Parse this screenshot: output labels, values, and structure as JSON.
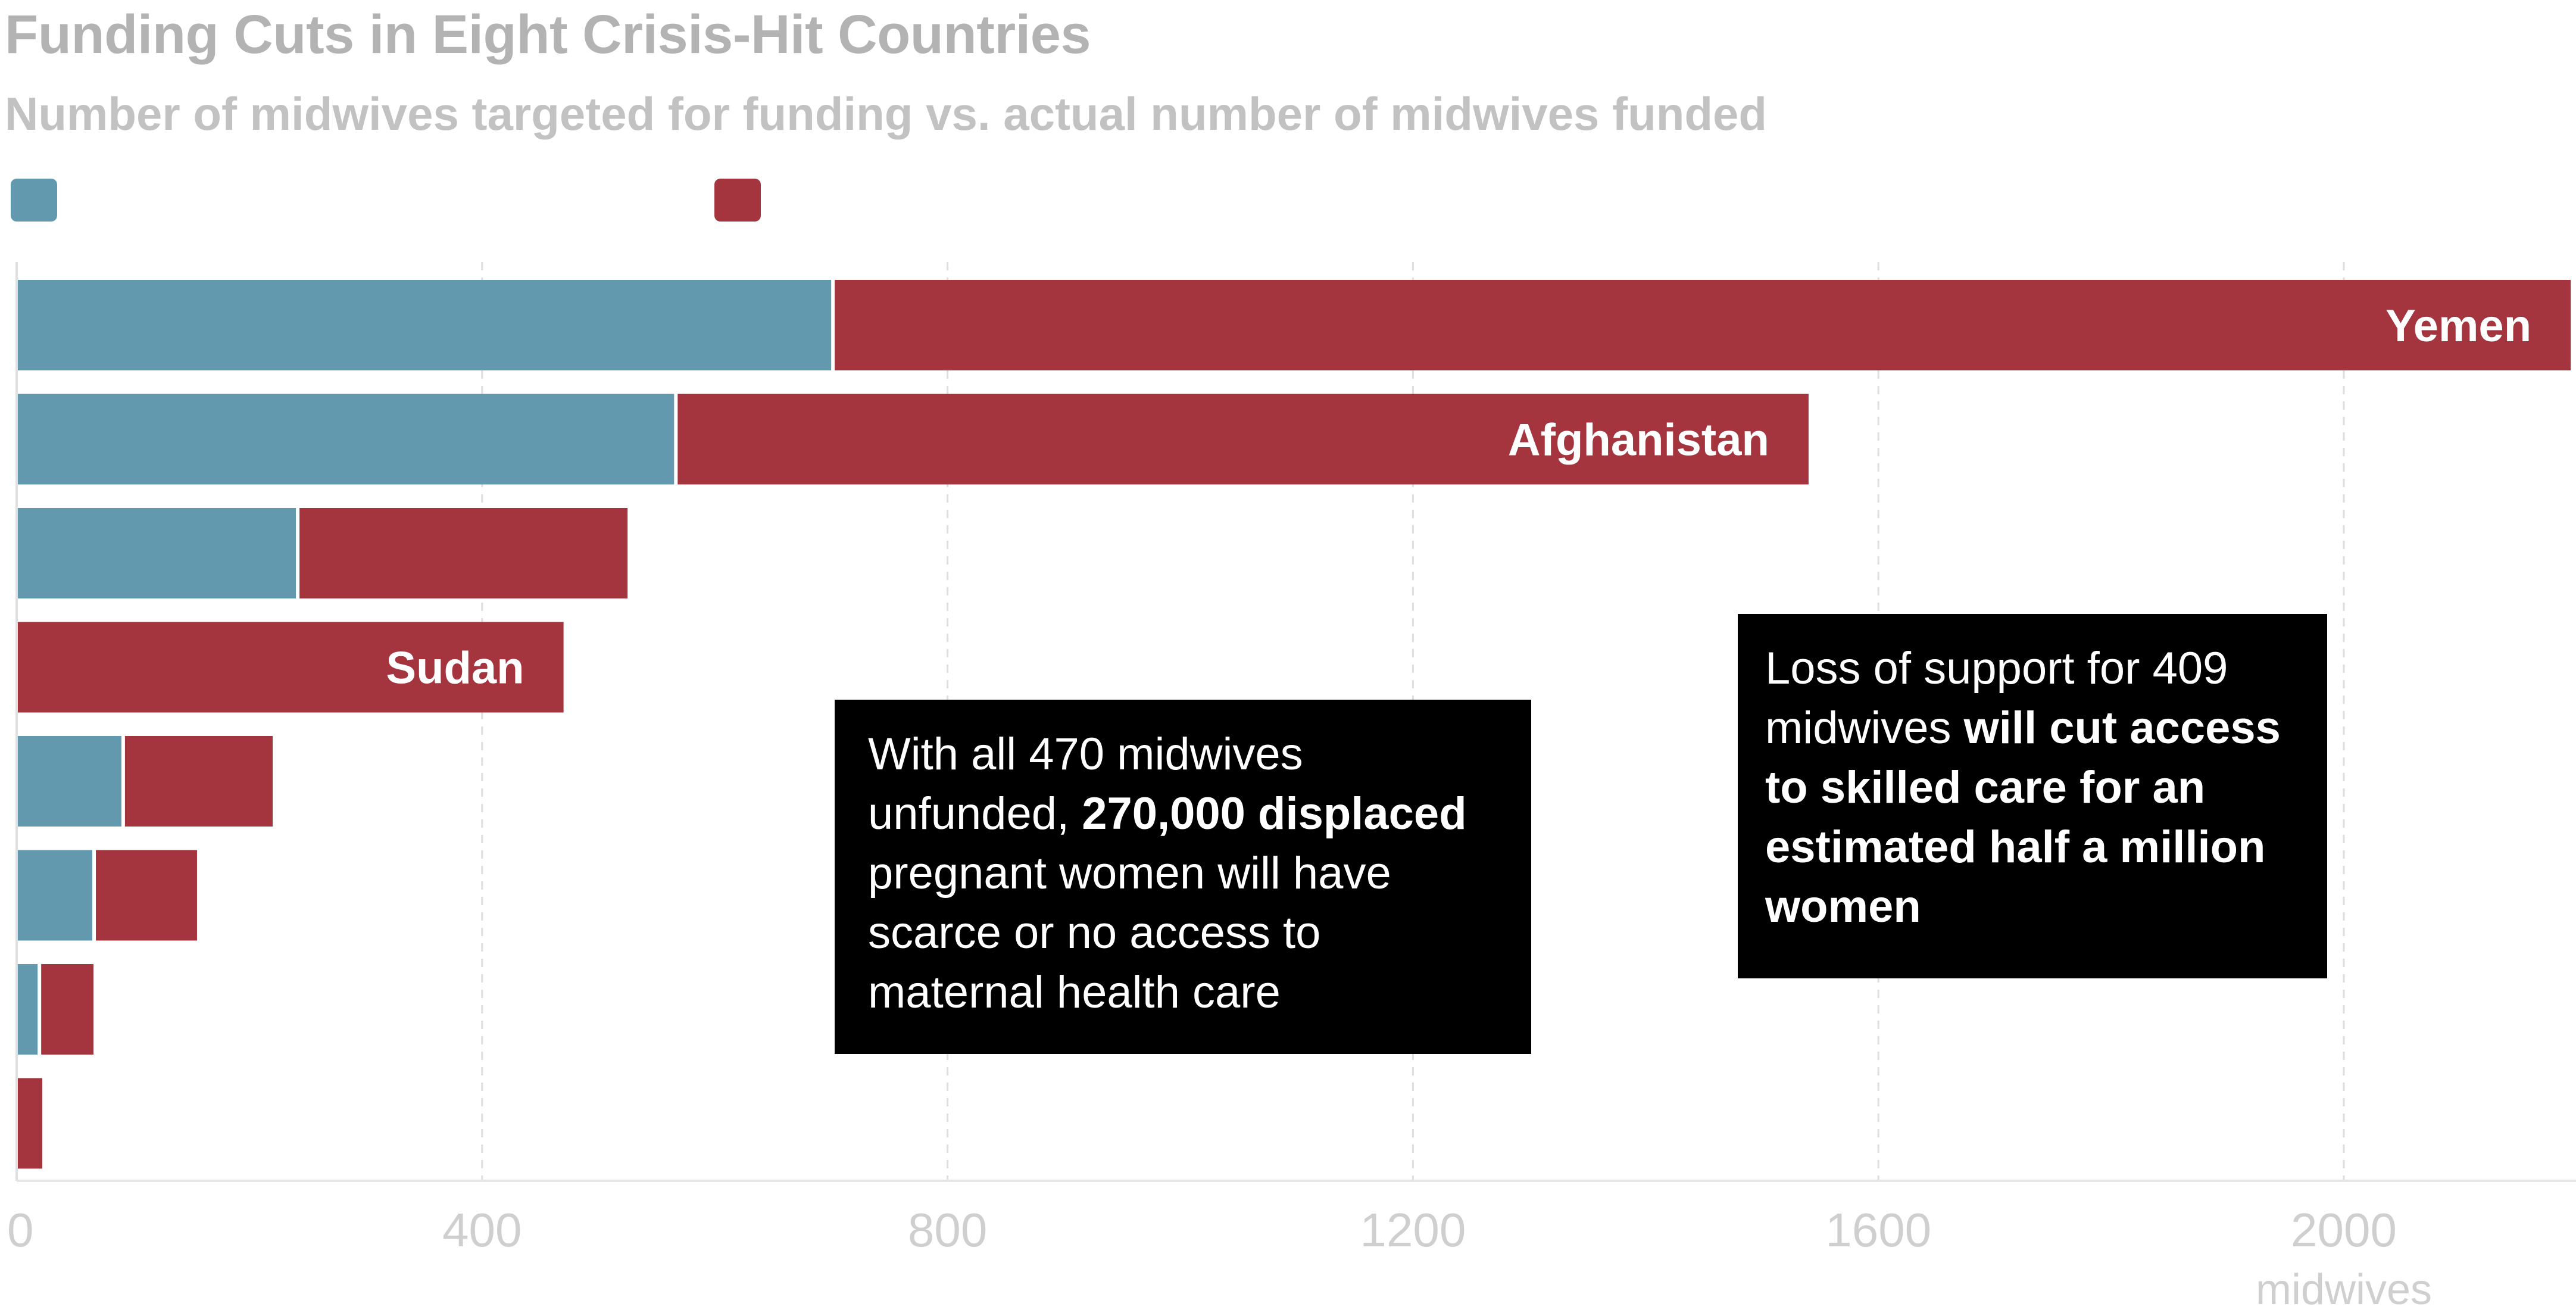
{
  "chart_data": {
    "type": "bar",
    "orientation": "horizontal",
    "stacked": true,
    "title": "Funding Cuts in Eight Crisis-Hit Countries",
    "subtitle": "Number of midwives targeted for funding vs. actual number of midwives funded",
    "xlabel": "midwives",
    "xlim": [
      0,
      2200
    ],
    "xticks": [
      0,
      400,
      800,
      1200,
      1600,
      2000
    ],
    "xtick_labels": [
      "0",
      "400",
      "800",
      "1200",
      "1600",
      "2000"
    ],
    "grid": "vertical-dashed",
    "categories": [
      "Yemen",
      "Afghanistan",
      "",
      "Sudan",
      "",
      "",
      "",
      ""
    ],
    "series": [
      {
        "color": "#6399ae",
        "values": [
          700,
          565,
          240,
          0,
          90,
          65,
          18,
          0
        ]
      },
      {
        "color": "#a4343d",
        "values": [
          1495,
          975,
          285,
          470,
          130,
          90,
          48,
          22
        ]
      }
    ],
    "annotations": {
      "sudan": [
        {
          "text": "With all 470 midwives",
          "bold": false
        },
        {
          "text": "unfunded, ",
          "bold": false,
          "newline": true
        },
        {
          "text": "270,000 displaced",
          "bold": true
        },
        {
          "text": "pregnant women will have",
          "bold": false,
          "newline": true
        },
        {
          "text": "scarce or no access to",
          "bold": false,
          "newline": true
        },
        {
          "text": "maternal health care",
          "bold": false,
          "newline": true
        }
      ],
      "afghanistan": [
        {
          "text": "Loss of support for 409",
          "bold": false
        },
        {
          "text": "midwives ",
          "bold": false,
          "newline": true
        },
        {
          "text": "will cut access",
          "bold": true
        },
        {
          "text": "to skilled care for an",
          "bold": true,
          "newline": true
        },
        {
          "text": "estimated half a million",
          "bold": true,
          "newline": true
        },
        {
          "text": "women",
          "bold": true,
          "newline": true
        }
      ]
    }
  }
}
